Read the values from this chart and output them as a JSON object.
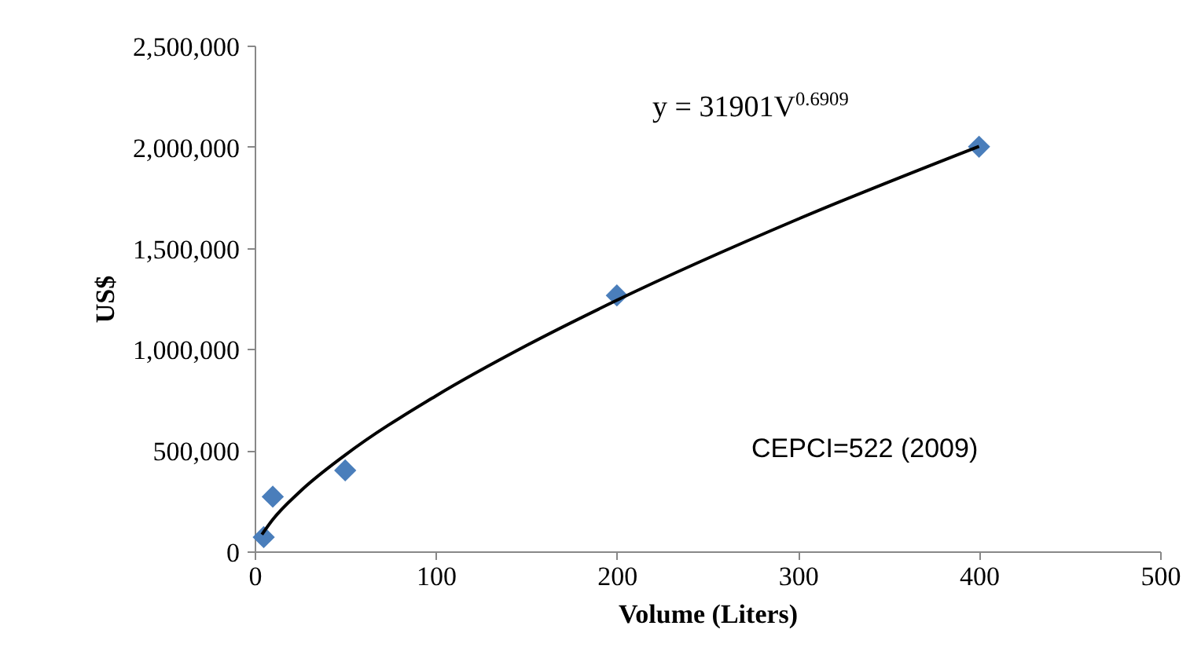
{
  "chart_data": {
    "type": "scatter",
    "xlabel": "Volume (Liters)",
    "ylabel": "US$",
    "xlim": [
      0,
      500
    ],
    "xticks": [
      0,
      100,
      200,
      300,
      400,
      500
    ],
    "ylim": [
      0,
      2500000
    ],
    "yticks": [
      0,
      {
        "value": 500000,
        "label": "500,000"
      },
      {
        "value": 1000000,
        "label": "1,000,000"
      },
      {
        "value": 1500000,
        "label": "1,500,000"
      },
      {
        "value": 2000000,
        "label": "2,000,000"
      },
      {
        "value": 2500000,
        "label": "2,500,000"
      }
    ],
    "grid": false,
    "series": [
      {
        "type": "scatter",
        "color": "#4a7ebb",
        "marker": "diamond",
        "x": [
          5,
          10,
          50,
          200,
          400
        ],
        "values": [
          70000,
          270000,
          400000,
          1265000,
          2000000
        ]
      },
      {
        "type": "line",
        "marker": "none",
        "color": "#000000",
        "x": [
          4,
          10,
          25,
          50,
          100,
          150,
          200,
          300,
          400
        ],
        "values": [
          83000,
          157000,
          295000,
          476000,
          768000,
          1017000,
          1241000,
          1642000,
          2002000
        ]
      }
    ],
    "annotations": [
      "y = 31901V$^{0.6909}$",
      "CEPCI=522 (2009)"
    ]
  }
}
